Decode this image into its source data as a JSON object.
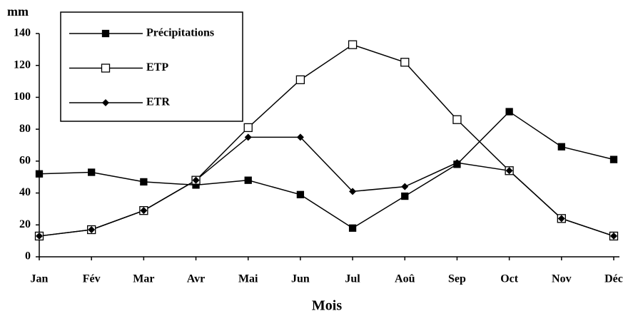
{
  "chart_data": {
    "type": "line",
    "y_label": "mm",
    "x_label": "Mois",
    "categories": [
      "Jan",
      "Fév",
      "Mar",
      "Avr",
      "Mai",
      "Jun",
      "Jul",
      "Aoû",
      "Sep",
      "Oct",
      "Nov",
      "Déc"
    ],
    "series": [
      {
        "name": "Précipitations",
        "color": "#000000",
        "marker": "square-filled",
        "values": [
          52,
          53,
          47,
          45,
          48,
          39,
          18,
          38,
          58,
          91,
          69,
          61
        ]
      },
      {
        "name": "ETP",
        "color": "#000000",
        "marker": "square-open",
        "values": [
          13,
          17,
          29,
          48,
          81,
          111,
          133,
          122,
          86,
          54,
          24,
          13
        ]
      },
      {
        "name": "ETR",
        "color": "#000000",
        "marker": "diamond",
        "values": [
          13,
          17,
          29,
          48,
          75,
          75,
          41,
          44,
          59,
          54,
          24,
          13
        ]
      }
    ],
    "ylim": [
      0,
      140
    ],
    "yticks": [
      0,
      20,
      40,
      60,
      80,
      100,
      120,
      140
    ],
    "grid": false,
    "legend": "upper left"
  }
}
